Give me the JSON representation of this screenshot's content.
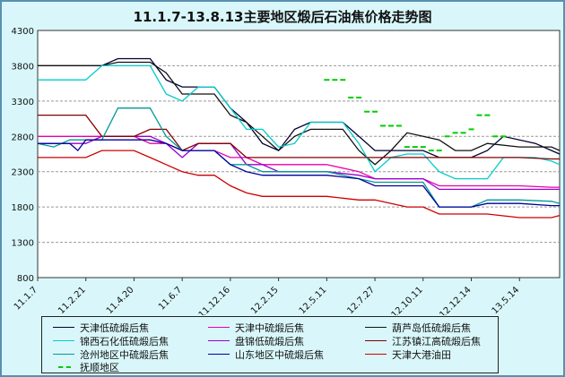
{
  "chart_data": {
    "type": "line",
    "title": "11.1.7-13.8.13主要地区煅后石油焦价格走势图",
    "ylim": [
      800,
      4300
    ],
    "yticks": [
      800,
      1300,
      1800,
      2300,
      2800,
      3300,
      3800,
      4300
    ],
    "xticks": [
      "11.1.7",
      "11.2.21",
      "11.4.20",
      "11.6.7",
      "11.12.16",
      "12.2.15",
      "12.5.11",
      "12.7.27",
      "12.10.11",
      "12.12.14",
      "13.5.14"
    ],
    "xtick_index": [
      0,
      6,
      12,
      18,
      24,
      30,
      36,
      42,
      48,
      54,
      60
    ],
    "n_points": 66,
    "grid": true,
    "legend_position": "bottom",
    "series": [
      {
        "name": "天津低硫煅后焦",
        "color": "#000033",
        "style": "solid",
        "points": [
          [
            0,
            3800
          ],
          [
            6,
            3800
          ],
          [
            8,
            3800
          ],
          [
            10,
            3900
          ],
          [
            14,
            3900
          ],
          [
            16,
            3600
          ],
          [
            18,
            3500
          ],
          [
            22,
            3500
          ],
          [
            24,
            3200
          ],
          [
            26,
            3000
          ],
          [
            28,
            2700
          ],
          [
            30,
            2600
          ],
          [
            32,
            2900
          ],
          [
            34,
            3000
          ],
          [
            38,
            3000
          ],
          [
            40,
            2800
          ],
          [
            42,
            2600
          ],
          [
            48,
            2600
          ],
          [
            50,
            2500
          ],
          [
            52,
            2500
          ],
          [
            54,
            2500
          ],
          [
            56,
            2600
          ],
          [
            58,
            2800
          ],
          [
            62,
            2700
          ],
          [
            64,
            2600
          ],
          [
            65,
            2550
          ]
        ]
      },
      {
        "name": "天津中硫煅后焦",
        "color": "#e600ac",
        "style": "solid",
        "points": [
          [
            0,
            2800
          ],
          [
            4,
            2800
          ],
          [
            6,
            2800
          ],
          [
            12,
            2800
          ],
          [
            14,
            2700
          ],
          [
            16,
            2700
          ],
          [
            18,
            2600
          ],
          [
            22,
            2600
          ],
          [
            24,
            2500
          ],
          [
            26,
            2500
          ],
          [
            28,
            2400
          ],
          [
            30,
            2400
          ],
          [
            36,
            2400
          ],
          [
            40,
            2300
          ],
          [
            42,
            2200
          ],
          [
            48,
            2200
          ],
          [
            50,
            2100
          ],
          [
            54,
            2100
          ],
          [
            56,
            2100
          ],
          [
            60,
            2100
          ],
          [
            64,
            2080
          ],
          [
            65,
            2080
          ]
        ]
      },
      {
        "name": "葫芦岛低硫煅后焦",
        "color": "#111111",
        "style": "solid",
        "points": [
          [
            0,
            3800
          ],
          [
            8,
            3800
          ],
          [
            10,
            3850
          ],
          [
            14,
            3850
          ],
          [
            16,
            3700
          ],
          [
            18,
            3400
          ],
          [
            22,
            3400
          ],
          [
            24,
            3100
          ],
          [
            26,
            3000
          ],
          [
            28,
            2800
          ],
          [
            30,
            2600
          ],
          [
            32,
            2800
          ],
          [
            34,
            2900
          ],
          [
            38,
            2900
          ],
          [
            40,
            2600
          ],
          [
            42,
            2400
          ],
          [
            44,
            2600
          ],
          [
            46,
            2850
          ],
          [
            48,
            2800
          ],
          [
            50,
            2750
          ],
          [
            52,
            2600
          ],
          [
            54,
            2600
          ],
          [
            56,
            2700
          ],
          [
            60,
            2650
          ],
          [
            64,
            2650
          ],
          [
            65,
            2600
          ]
        ]
      },
      {
        "name": "锦西石化低硫煅后焦",
        "color": "#00cccc",
        "style": "solid",
        "points": [
          [
            0,
            3600
          ],
          [
            6,
            3600
          ],
          [
            8,
            3800
          ],
          [
            14,
            3800
          ],
          [
            16,
            3400
          ],
          [
            18,
            3300
          ],
          [
            20,
            3500
          ],
          [
            22,
            3500
          ],
          [
            24,
            3200
          ],
          [
            26,
            2900
          ],
          [
            28,
            2900
          ],
          [
            30,
            2650
          ],
          [
            32,
            2700
          ],
          [
            34,
            3000
          ],
          [
            38,
            3000
          ],
          [
            40,
            2700
          ],
          [
            42,
            2300
          ],
          [
            44,
            2500
          ],
          [
            46,
            2550
          ],
          [
            48,
            2550
          ],
          [
            50,
            2300
          ],
          [
            52,
            2200
          ],
          [
            56,
            2200
          ],
          [
            58,
            2500
          ],
          [
            62,
            2500
          ],
          [
            64,
            2450
          ],
          [
            65,
            2400
          ]
        ]
      },
      {
        "name": "盘锦低硫煅后焦",
        "color": "#9900cc",
        "style": "solid",
        "points": [
          [
            0,
            2700
          ],
          [
            4,
            2700
          ],
          [
            6,
            2700
          ],
          [
            8,
            2800
          ],
          [
            14,
            2800
          ],
          [
            16,
            2700
          ],
          [
            18,
            2500
          ],
          [
            20,
            2700
          ],
          [
            24,
            2700
          ],
          [
            26,
            2400
          ],
          [
            28,
            2400
          ],
          [
            30,
            2300
          ],
          [
            36,
            2300
          ],
          [
            40,
            2250
          ],
          [
            42,
            2200
          ],
          [
            48,
            2200
          ],
          [
            50,
            2050
          ],
          [
            54,
            2050
          ],
          [
            56,
            2050
          ],
          [
            60,
            2050
          ],
          [
            64,
            2050
          ],
          [
            65,
            2050
          ]
        ]
      },
      {
        "name": "江苏镇江高硫煅后焦",
        "color": "#800000",
        "style": "solid",
        "points": [
          [
            0,
            3100
          ],
          [
            4,
            3100
          ],
          [
            6,
            3100
          ],
          [
            8,
            2800
          ],
          [
            12,
            2800
          ],
          [
            14,
            2900
          ],
          [
            16,
            2900
          ],
          [
            18,
            2600
          ],
          [
            20,
            2700
          ],
          [
            24,
            2700
          ],
          [
            26,
            2500
          ],
          [
            28,
            2500
          ],
          [
            30,
            2500
          ],
          [
            36,
            2500
          ],
          [
            40,
            2500
          ],
          [
            42,
            2500
          ],
          [
            48,
            2500
          ],
          [
            50,
            2500
          ],
          [
            54,
            2500
          ],
          [
            56,
            2500
          ],
          [
            60,
            2500
          ],
          [
            64,
            2480
          ],
          [
            65,
            2480
          ]
        ]
      },
      {
        "name": "沧州地区中硫煅后焦",
        "color": "#009999",
        "style": "solid",
        "points": [
          [
            0,
            2700
          ],
          [
            2,
            2650
          ],
          [
            4,
            2750
          ],
          [
            6,
            2750
          ],
          [
            8,
            2750
          ],
          [
            10,
            3200
          ],
          [
            14,
            3200
          ],
          [
            16,
            2800
          ],
          [
            18,
            2600
          ],
          [
            22,
            2600
          ],
          [
            24,
            2400
          ],
          [
            26,
            2400
          ],
          [
            28,
            2300
          ],
          [
            30,
            2300
          ],
          [
            36,
            2300
          ],
          [
            40,
            2200
          ],
          [
            42,
            2150
          ],
          [
            48,
            2150
          ],
          [
            50,
            1800
          ],
          [
            54,
            1800
          ],
          [
            56,
            1900
          ],
          [
            60,
            1900
          ],
          [
            64,
            1880
          ],
          [
            65,
            1850
          ]
        ]
      },
      {
        "name": "山东地区中硫煅后焦",
        "color": "#000099",
        "style": "solid",
        "points": [
          [
            0,
            2700
          ],
          [
            4,
            2700
          ],
          [
            5,
            2600
          ],
          [
            6,
            2750
          ],
          [
            8,
            2750
          ],
          [
            14,
            2750
          ],
          [
            16,
            2700
          ],
          [
            18,
            2600
          ],
          [
            22,
            2600
          ],
          [
            24,
            2400
          ],
          [
            26,
            2300
          ],
          [
            28,
            2250
          ],
          [
            30,
            2250
          ],
          [
            36,
            2250
          ],
          [
            40,
            2200
          ],
          [
            42,
            2100
          ],
          [
            48,
            2100
          ],
          [
            50,
            1800
          ],
          [
            54,
            1800
          ],
          [
            56,
            1850
          ],
          [
            60,
            1850
          ],
          [
            64,
            1820
          ],
          [
            65,
            1820
          ]
        ]
      },
      {
        "name": "天津大港油田",
        "color": "#cc0000",
        "style": "solid",
        "points": [
          [
            0,
            2500
          ],
          [
            4,
            2500
          ],
          [
            6,
            2500
          ],
          [
            8,
            2600
          ],
          [
            12,
            2600
          ],
          [
            14,
            2500
          ],
          [
            16,
            2400
          ],
          [
            18,
            2300
          ],
          [
            20,
            2250
          ],
          [
            22,
            2250
          ],
          [
            24,
            2100
          ],
          [
            26,
            2000
          ],
          [
            28,
            1950
          ],
          [
            30,
            1950
          ],
          [
            32,
            1950
          ],
          [
            36,
            1950
          ],
          [
            40,
            1900
          ],
          [
            42,
            1900
          ],
          [
            46,
            1800
          ],
          [
            48,
            1800
          ],
          [
            50,
            1700
          ],
          [
            54,
            1700
          ],
          [
            56,
            1700
          ],
          [
            60,
            1650
          ],
          [
            64,
            1650
          ],
          [
            65,
            1680
          ]
        ]
      },
      {
        "name": "抚顺地区",
        "color": "#00cc00",
        "style": "dash",
        "points": [
          [
            36,
            3600
          ],
          [
            37,
            3600
          ],
          [
            38,
            3600
          ],
          [
            39,
            3350
          ],
          [
            40,
            3350
          ],
          [
            41,
            3150
          ],
          [
            42,
            3150
          ],
          [
            43,
            2950
          ],
          [
            44,
            2950
          ],
          [
            45,
            2950
          ],
          [
            46,
            2650
          ],
          [
            47,
            2650
          ],
          [
            48,
            2650
          ],
          [
            49,
            2600
          ],
          [
            50,
            2600
          ],
          [
            51,
            2800
          ],
          [
            52,
            2850
          ],
          [
            53,
            2850
          ],
          [
            54,
            2900
          ],
          [
            55,
            3100
          ],
          [
            56,
            3100
          ],
          [
            57,
            2800
          ],
          [
            58,
            2800
          ]
        ]
      }
    ]
  }
}
